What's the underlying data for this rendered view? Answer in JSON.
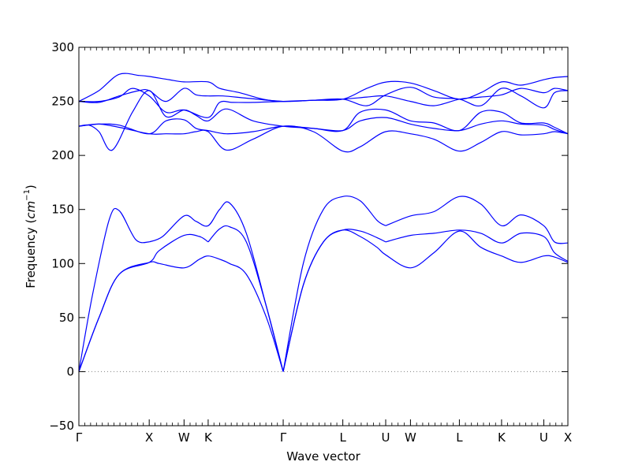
{
  "chart_data": {
    "type": "line",
    "title": "",
    "xlabel": "Wave vector",
    "ylabel": {
      "text": "Frequency (",
      "unit_base": "cm",
      "unit_exp": "−1",
      "close": ")"
    },
    "ylim": [
      -50,
      300
    ],
    "yticks": [
      -50,
      0,
      50,
      100,
      150,
      200,
      250,
      300
    ],
    "xlim": [
      0,
      7.3
    ],
    "xticks": [
      {
        "label": "Γ",
        "x": 0.0
      },
      {
        "label": "X",
        "x": 1.05
      },
      {
        "label": "W",
        "x": 1.57
      },
      {
        "label": "K",
        "x": 1.93
      },
      {
        "label": "Γ",
        "x": 3.05
      },
      {
        "label": "L",
        "x": 3.94
      },
      {
        "label": "U",
        "x": 4.58
      },
      {
        "label": "W",
        "x": 4.95
      },
      {
        "label": "L",
        "x": 5.68
      },
      {
        "label": "K",
        "x": 6.31
      },
      {
        "label": "U",
        "x": 6.94
      },
      {
        "label": "X",
        "x": 7.3
      }
    ],
    "zero_line": {
      "y": 0,
      "style": "dotted",
      "color": "#808080"
    },
    "line_color": "#0000ff",
    "grid": false,
    "legend": "none",
    "series": [
      {
        "x": [
          0,
          0.2,
          0.45,
          0.6,
          0.85,
          1.05
        ],
        "y": [
          0,
          70,
          140,
          149,
          122,
          120
        ]
      },
      {
        "x": [
          1.05,
          1.25,
          1.57,
          1.75,
          1.93,
          2.1,
          2.25,
          2.5,
          2.8,
          3.05
        ],
        "y": [
          120,
          125,
          144,
          139,
          135,
          150,
          156,
          128,
          60,
          0
        ]
      },
      {
        "x": [
          3.05,
          3.35,
          3.65,
          3.94,
          4.2,
          4.45,
          4.58
        ],
        "y": [
          0,
          100,
          150,
          162,
          158,
          140,
          135
        ]
      },
      {
        "x": [
          4.58,
          4.95,
          5.3,
          5.68,
          6.0,
          6.31,
          6.6,
          6.94,
          7.1,
          7.3
        ],
        "y": [
          135,
          144,
          148,
          162,
          155,
          135,
          145,
          135,
          120,
          119
        ]
      },
      {
        "x": [
          0,
          0.3,
          0.6,
          1.05,
          1.2,
          1.57,
          1.8,
          1.93
        ],
        "y": [
          0,
          50,
          90,
          101,
          112,
          126,
          125,
          120
        ]
      },
      {
        "x": [
          1.93,
          2.1,
          2.25,
          2.5,
          2.8,
          3.05
        ],
        "y": [
          120,
          132,
          134,
          120,
          60,
          0
        ]
      },
      {
        "x": [
          3.05,
          3.35,
          3.65,
          3.94,
          4.2,
          4.45,
          4.58
        ],
        "y": [
          0,
          80,
          120,
          131,
          130,
          124,
          120
        ]
      },
      {
        "x": [
          4.58,
          4.95,
          5.3,
          5.68,
          6.0,
          6.31,
          6.6,
          6.94,
          7.1,
          7.3
        ],
        "y": [
          120,
          126,
          128,
          131,
          128,
          119,
          128,
          125,
          110,
          102
        ]
      },
      {
        "x": [
          0,
          0.3,
          0.6,
          1.05,
          1.2,
          1.57,
          1.8,
          1.93,
          2.1,
          2.25,
          2.5,
          2.8,
          3.05
        ],
        "y": [
          0,
          50,
          90,
          101,
          100,
          96,
          104,
          107,
          104,
          100,
          90,
          50,
          0
        ]
      },
      {
        "x": [
          3.05,
          3.35,
          3.65,
          3.94,
          4.2,
          4.45,
          4.58,
          4.95,
          5.3,
          5.68,
          6.0,
          6.31,
          6.6,
          6.94,
          7.1,
          7.3
        ],
        "y": [
          0,
          80,
          120,
          131,
          125,
          115,
          108,
          96,
          110,
          130,
          115,
          107,
          101,
          107,
          106,
          101
        ]
      },
      {
        "x": [
          0,
          0.3,
          0.6,
          0.9,
          1.05,
          1.35,
          1.57,
          1.93,
          2.1,
          2.4,
          2.75,
          3.05,
          3.5,
          3.94,
          4.3,
          4.6,
          4.95,
          5.3,
          5.68,
          6.0,
          6.31,
          6.6,
          6.94,
          7.1,
          7.3
        ],
        "y": [
          250,
          260,
          275,
          274,
          273,
          270,
          268,
          268,
          262,
          258,
          252,
          250,
          251,
          252,
          262,
          268,
          267,
          260,
          252,
          258,
          268,
          265,
          270,
          272,
          273
        ]
      },
      {
        "x": [
          0,
          0.3,
          0.6,
          0.9,
          1.05,
          1.3,
          1.57,
          1.75,
          1.93,
          2.15,
          2.5,
          3.05,
          3.5,
          3.94,
          4.3,
          4.58,
          4.95,
          5.3,
          5.68,
          6.0,
          6.31,
          6.6,
          6.94,
          7.1,
          7.3
        ],
        "y": [
          250,
          249,
          255,
          260,
          260,
          250,
          262,
          256,
          255,
          255,
          253,
          250,
          251,
          252,
          254,
          255,
          250,
          246,
          252,
          254,
          256,
          262,
          258,
          262,
          260
        ]
      },
      {
        "x": [
          0,
          0.3,
          0.6,
          0.8,
          1.05,
          1.3,
          1.57,
          1.93,
          2.1,
          2.3,
          2.6,
          3.05,
          3.5,
          3.94,
          4.3,
          4.58,
          4.95,
          5.3,
          5.68,
          6.0,
          6.31,
          6.6,
          6.94,
          7.1,
          7.3
        ],
        "y": [
          250,
          250,
          254,
          262,
          255,
          240,
          242,
          235,
          249,
          249,
          249,
          250,
          251,
          252,
          246,
          256,
          263,
          254,
          252,
          246,
          262,
          255,
          244,
          258,
          260
        ]
      },
      {
        "x": [
          0,
          0.15,
          0.3,
          0.5,
          0.8,
          1.05,
          1.3,
          1.57,
          1.75,
          1.93,
          2.2,
          2.6,
          3.05,
          3.5,
          3.94,
          4.2,
          4.58,
          4.95,
          5.3,
          5.68,
          6.0,
          6.31,
          6.6,
          6.94,
          7.1,
          7.3
        ],
        "y": [
          227,
          228,
          222,
          205,
          240,
          260,
          236,
          242,
          237,
          232,
          243,
          232,
          227,
          225,
          223,
          240,
          242,
          232,
          230,
          223,
          240,
          240,
          230,
          230,
          226,
          220
        ]
      },
      {
        "x": [
          0,
          0.3,
          0.6,
          1.05,
          1.3,
          1.57,
          1.75,
          1.93,
          2.2,
          2.6,
          3.05,
          3.5,
          3.94,
          4.2,
          4.58,
          4.95,
          5.3,
          5.68,
          6.0,
          6.31,
          6.6,
          6.94,
          7.1,
          7.3
        ],
        "y": [
          227,
          229,
          228,
          220,
          232,
          233,
          225,
          223,
          220,
          222,
          227,
          225,
          223,
          232,
          235,
          229,
          225,
          223,
          229,
          232,
          229,
          228,
          224,
          220
        ]
      },
      {
        "x": [
          0,
          0.3,
          0.6,
          1.05,
          1.3,
          1.57,
          1.75,
          1.93,
          2.2,
          2.6,
          3.05,
          3.5,
          3.94,
          4.2,
          4.58,
          4.95,
          5.3,
          5.68,
          6.0,
          6.31,
          6.6,
          6.94,
          7.1,
          7.3
        ],
        "y": [
          227,
          229,
          226,
          220,
          220,
          220,
          222,
          222,
          205,
          215,
          227,
          222,
          204,
          208,
          222,
          220,
          215,
          204,
          212,
          222,
          219,
          220,
          222,
          220
        ]
      }
    ]
  }
}
